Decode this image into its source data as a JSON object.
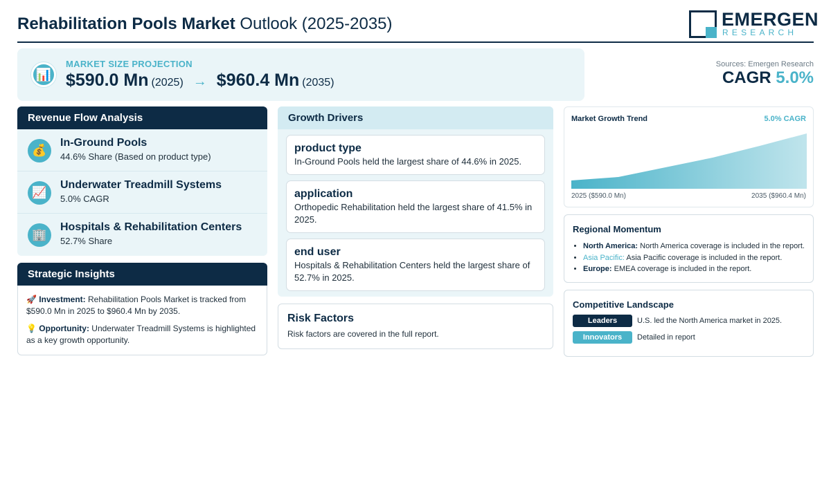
{
  "header": {
    "title_bold": "Rehabilitation Pools Market",
    "title_rest": " Outlook (2025-2035)",
    "logo_name": "EMERGEN",
    "logo_sub": "RESEARCH"
  },
  "projection": {
    "label": "MARKET SIZE PROJECTION",
    "start_value": "$590.0 Mn",
    "start_year": "(2025)",
    "arrow": "→",
    "end_value": "$960.4 Mn",
    "end_year": "(2035)",
    "icon": "bar-chart-icon"
  },
  "cagr": {
    "sources": "Sources: Emergen Research",
    "label": "CAGR",
    "value": "5.0%"
  },
  "revenue_flow": {
    "title": "Revenue Flow Analysis",
    "items": [
      {
        "icon": "money-bag-icon",
        "glyph": "💰",
        "title": "In-Ground Pools",
        "sub": "44.6% Share (Based on product type)"
      },
      {
        "icon": "trend-up-icon",
        "glyph": "📈",
        "title": "Underwater Treadmill Systems",
        "sub": "5.0% CAGR"
      },
      {
        "icon": "building-icon",
        "glyph": "🏢",
        "title": "Hospitals & Rehabilitation Centers",
        "sub": "52.7% Share"
      }
    ]
  },
  "strategic": {
    "title": "Strategic Insights",
    "items": [
      {
        "icon": "rocket-icon",
        "glyph": "🚀",
        "label": "Investment:",
        "text": " Rehabilitation Pools Market is tracked from $590.0 Mn in 2025 to $960.4 Mn by 2035."
      },
      {
        "icon": "lightbulb-icon",
        "glyph": "💡",
        "label": "Opportunity:",
        "text": " Underwater Treadmill Systems is highlighted as a key growth opportunity."
      }
    ]
  },
  "drivers": {
    "title": "Growth Drivers",
    "cards": [
      {
        "title": "product type",
        "text": "In-Ground Pools held the largest share of 44.6% in 2025."
      },
      {
        "title": "application",
        "text": "Orthopedic Rehabilitation held the largest share of 41.5% in 2025."
      },
      {
        "title": "end user",
        "text": "Hospitals & Rehabilitation Centers held the largest share of 52.7% in 2025."
      }
    ]
  },
  "risk": {
    "title": "Risk Factors",
    "text": "Risk factors are covered in the full report."
  },
  "trend": {
    "title": "Market Growth Trend",
    "cagr": "5.0% CAGR",
    "left_label": "2025 ($590.0 Mn)",
    "right_label": "2035 ($960.4 Mn)",
    "accent": "#4ab3c9"
  },
  "region": {
    "title": "Regional Momentum",
    "items": [
      {
        "name": "North America:",
        "text": " North America coverage is included in the report."
      },
      {
        "name": "Asia Pacific:",
        "text": " Asia Pacific coverage is included in the report."
      },
      {
        "name": "Europe:",
        "text": " EMEA coverage is included in the report."
      }
    ]
  },
  "competitive": {
    "title": "Competitive Landscape",
    "rows": [
      {
        "badge": "Leaders",
        "text": "U.S. led the North America market in 2025."
      },
      {
        "badge": "Innovators",
        "text": "Detailed in report"
      }
    ]
  },
  "colors": {
    "navy": "#0d2b45",
    "accent": "#4ab3c9",
    "panel_bg": "#eaf5f8"
  }
}
